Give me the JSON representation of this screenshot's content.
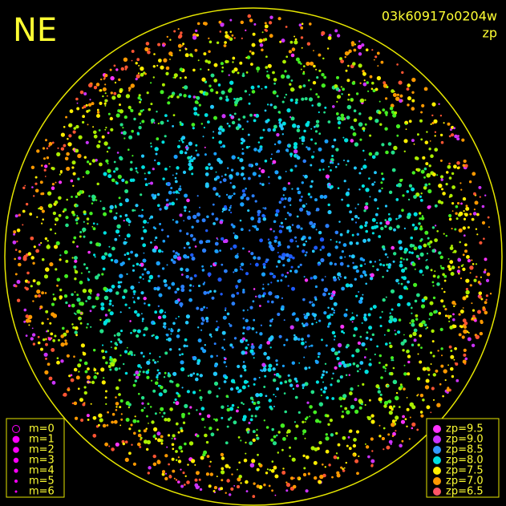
{
  "header": {
    "title": "NE",
    "image_id": "03k60917o0204w",
    "mode": "zp"
  },
  "magnitude_legend": {
    "color": "#ff00ff",
    "items": [
      "m=0",
      "m=1",
      "m=2",
      "m=3",
      "m=4",
      "m=5",
      "m=6"
    ]
  },
  "zp_legend": {
    "items": [
      {
        "label": "zp=9.5",
        "color": "#ff33ff"
      },
      {
        "label": "zp=9.0",
        "color": "#cc33ff"
      },
      {
        "label": "zp=8.5",
        "color": "#3399ff"
      },
      {
        "label": "zp=8.0",
        "color": "#00e0e0"
      },
      {
        "label": "zp=7.5",
        "color": "#ffee00"
      },
      {
        "label": "zp=7.0",
        "color": "#ff9900"
      },
      {
        "label": "zp=6.5",
        "color": "#ff5566"
      }
    ]
  }
}
